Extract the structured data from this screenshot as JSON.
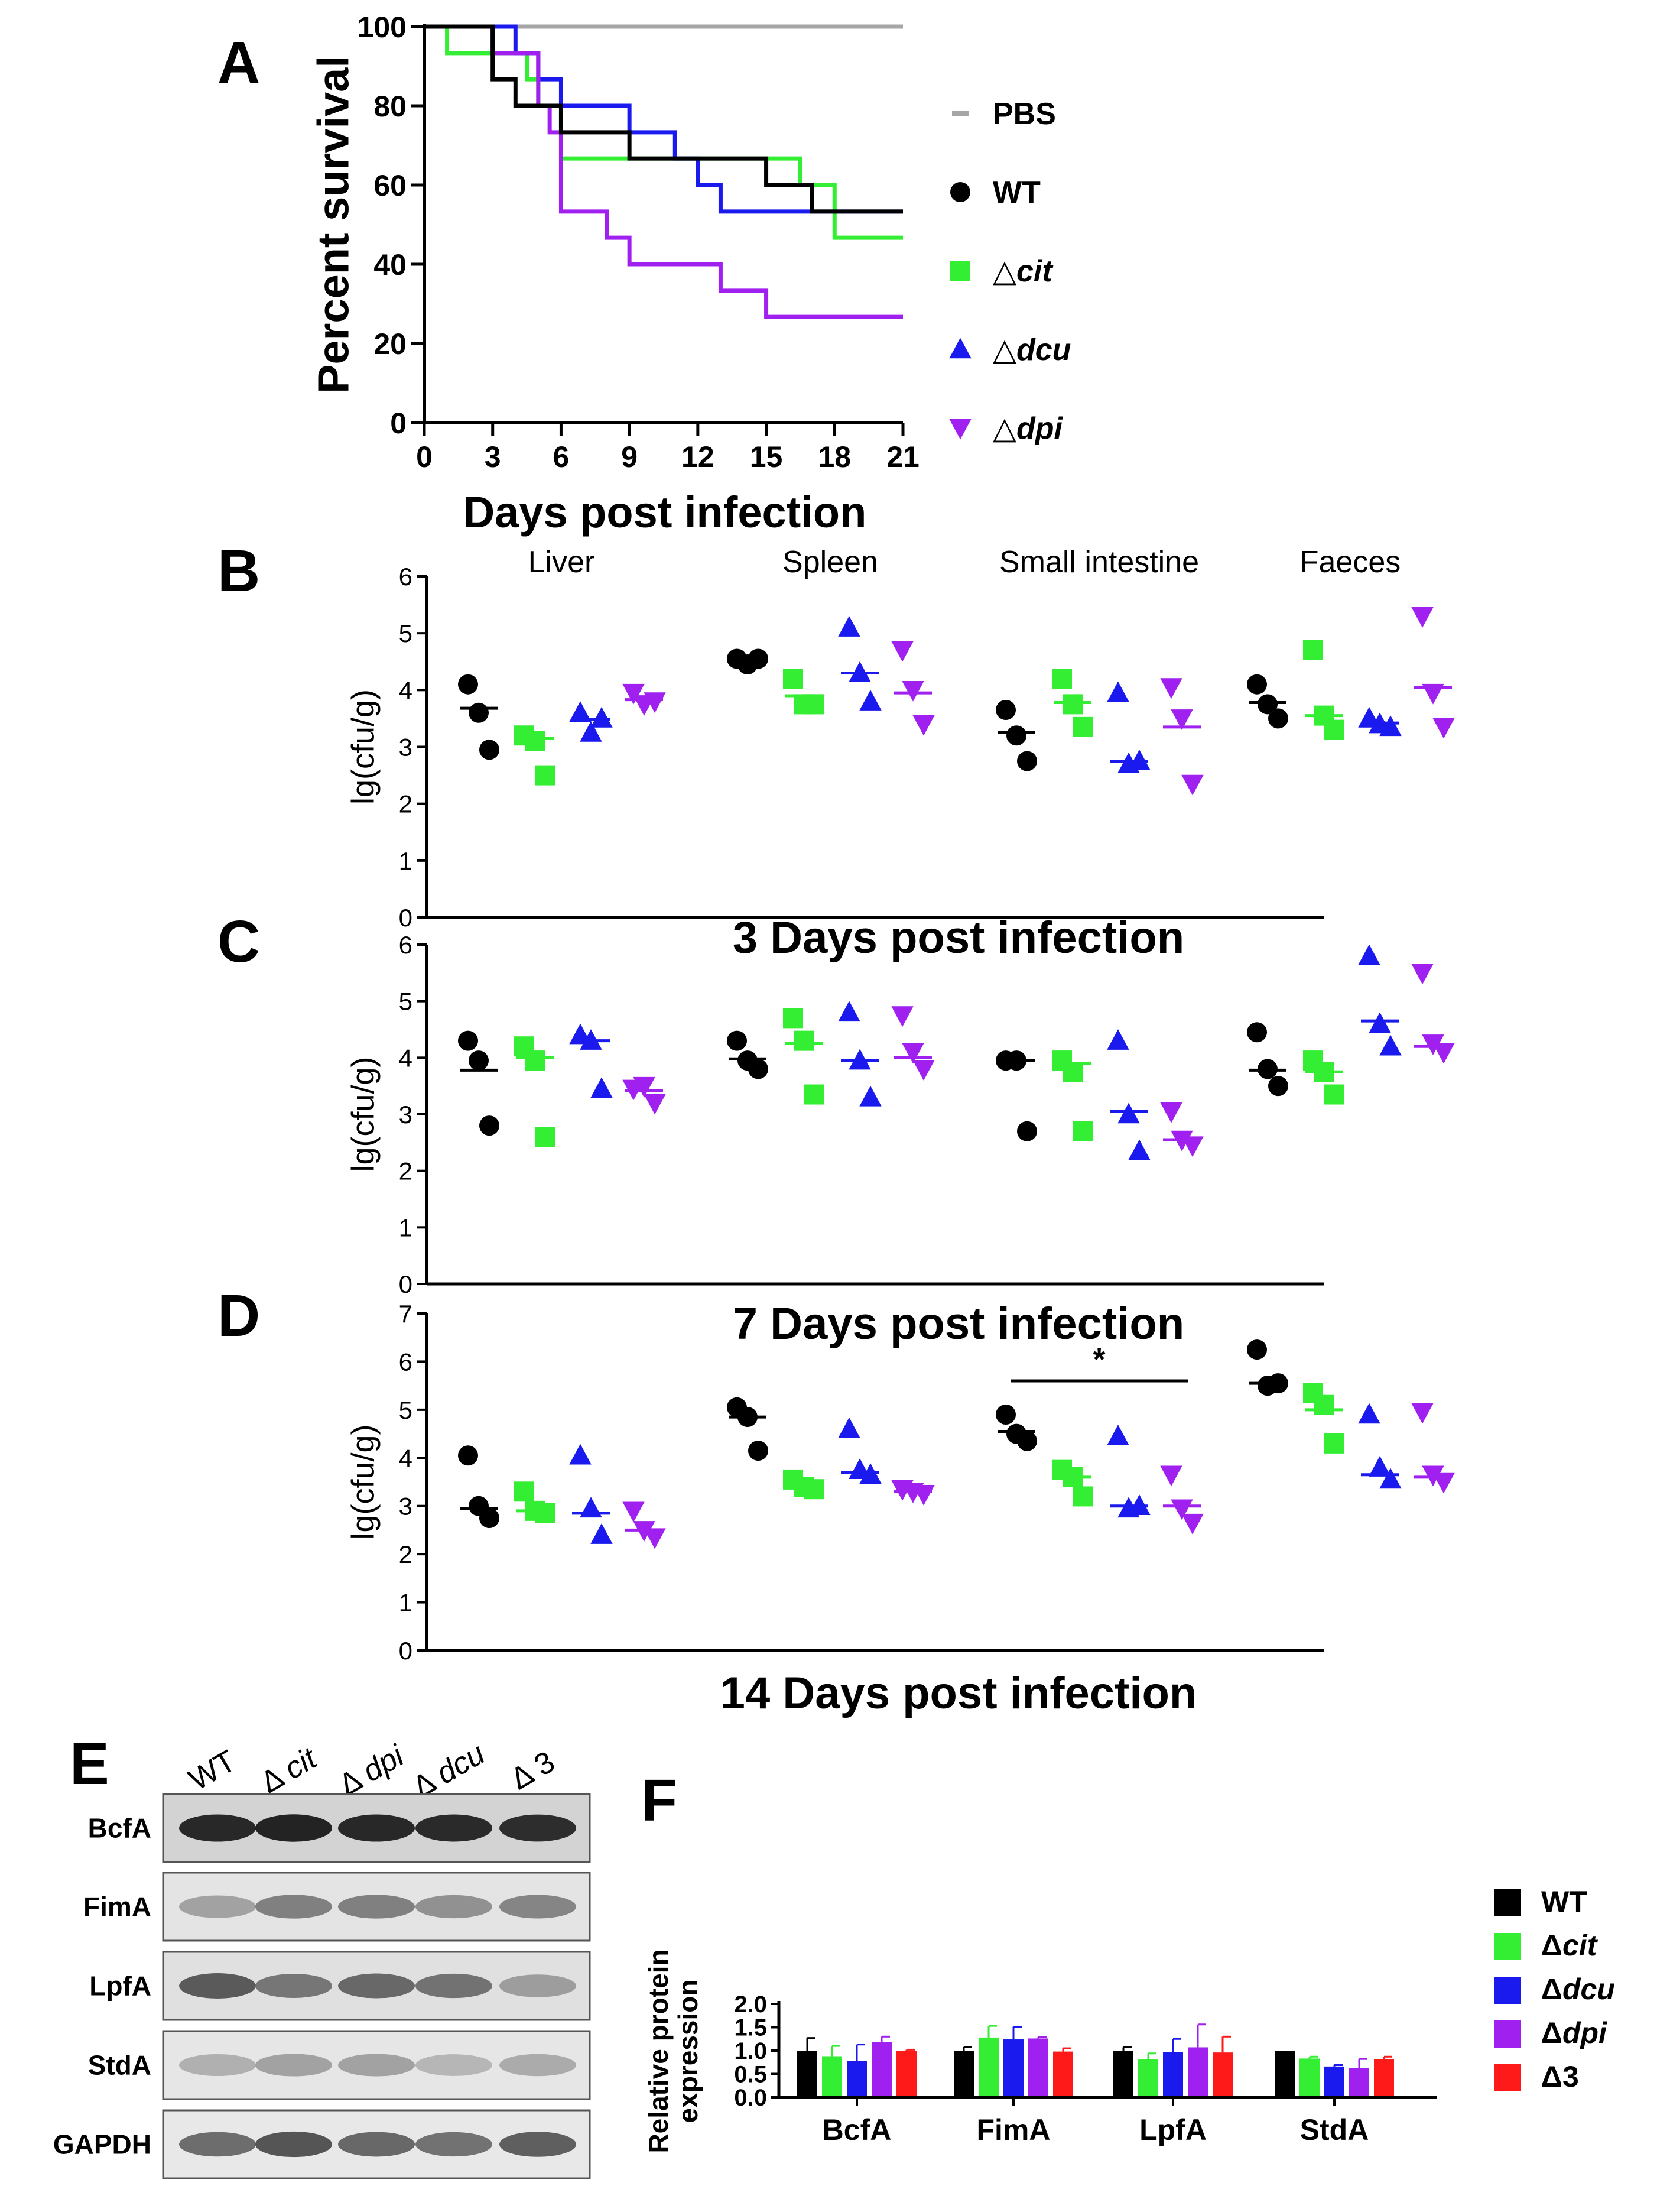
{
  "colors": {
    "PBS": "#a6a6a6",
    "WT": "#000000",
    "cit": "#33ee33",
    "dcu": "#1a1aee",
    "dpi": "#a020f0",
    "d3": "#ff1a1a"
  },
  "chart_data": [
    {
      "panel": "A",
      "type": "line",
      "step": true,
      "xlabel": "Days post infection",
      "ylabel": "Percent survival",
      "xlim": [
        0,
        21
      ],
      "ylim": [
        0,
        100
      ],
      "xticks": [
        "0",
        "3",
        "6",
        "9",
        "12",
        "15",
        "18",
        "21"
      ],
      "yticks": [
        "0",
        "20",
        "40",
        "60",
        "80",
        "100"
      ],
      "legend": [
        {
          "key": "PBS",
          "marker": "dash",
          "text": "PBS",
          "italic": ""
        },
        {
          "key": "WT",
          "marker": "circle",
          "text": "WT",
          "italic": ""
        },
        {
          "key": "cit",
          "marker": "square",
          "text": "△",
          "italic": "cit"
        },
        {
          "key": "dcu",
          "marker": "triangle",
          "text": "△",
          "italic": "dcu"
        },
        {
          "key": "dpi",
          "marker": "invtriangle",
          "text": "△",
          "italic": "dpi"
        }
      ],
      "series": [
        {
          "name": "PBS",
          "key": "PBS",
          "points": [
            [
              0,
              100
            ],
            [
              21,
              100
            ]
          ]
        },
        {
          "name": "Δcit",
          "key": "cit",
          "points": [
            [
              0,
              100
            ],
            [
              1,
              93.3
            ],
            [
              3,
              93.3
            ],
            [
              4.5,
              86.7
            ],
            [
              5,
              80
            ],
            [
              6,
              66.7
            ],
            [
              9,
              66.7
            ],
            [
              15,
              66.7
            ],
            [
              16.5,
              60
            ],
            [
              18,
              46.7
            ],
            [
              21,
              46.7
            ]
          ]
        },
        {
          "name": "Δdcu",
          "key": "dcu",
          "points": [
            [
              0,
              100
            ],
            [
              4,
              93.3
            ],
            [
              5,
              86.7
            ],
            [
              6,
              80
            ],
            [
              9,
              73.3
            ],
            [
              11,
              66.7
            ],
            [
              12,
              60
            ],
            [
              13,
              53.3
            ],
            [
              21,
              53.3
            ]
          ]
        },
        {
          "name": "Δdpi",
          "key": "dpi",
          "points": [
            [
              0,
              100
            ],
            [
              3,
              93.3
            ],
            [
              5,
              80
            ],
            [
              5.5,
              73.3
            ],
            [
              6,
              53.3
            ],
            [
              8,
              46.7
            ],
            [
              9,
              40
            ],
            [
              12,
              40
            ],
            [
              13,
              33.3
            ],
            [
              15,
              26.7
            ],
            [
              21,
              26.7
            ]
          ]
        },
        {
          "name": "WT",
          "key": "WT",
          "points": [
            [
              0,
              100
            ],
            [
              3,
              86.7
            ],
            [
              4,
              80
            ],
            [
              6,
              73.3
            ],
            [
              9,
              66.7
            ],
            [
              15,
              60
            ],
            [
              17,
              53.3
            ],
            [
              21,
              53.3
            ]
          ]
        }
      ]
    },
    {
      "panel": "B",
      "type": "scatter",
      "xlabel": "3 Days post infection",
      "ylabel": "lg(cfu/g)",
      "ylim": [
        0,
        6
      ],
      "yticks": [
        "0",
        "1",
        "2",
        "3",
        "4",
        "5",
        "6"
      ],
      "categories": [
        "Liver",
        "Spleen",
        "Small intestine",
        "Faeces"
      ],
      "groups": [
        {
          "category": "Liver",
          "strain": "WT",
          "values": [
            4.1,
            3.6,
            2.95
          ],
          "mean": 3.68
        },
        {
          "category": "Liver",
          "strain": "Δcit",
          "values": [
            3.2,
            3.1,
            2.5
          ],
          "mean": 3.15
        },
        {
          "category": "Liver",
          "strain": "Δdcu",
          "values": [
            3.6,
            3.25,
            3.5
          ],
          "mean": 3.48
        },
        {
          "category": "Liver",
          "strain": "Δdpi",
          "values": [
            3.95,
            3.75,
            3.8
          ],
          "mean": 3.83
        },
        {
          "category": "Spleen",
          "strain": "WT",
          "values": [
            4.55,
            4.45,
            4.55
          ],
          "mean": 4.52
        },
        {
          "category": "Spleen",
          "strain": "Δcit",
          "values": [
            4.2,
            3.75,
            3.75
          ],
          "mean": 3.9
        },
        {
          "category": "Spleen",
          "strain": "Δdcu",
          "values": [
            5.1,
            4.3,
            3.8
          ],
          "mean": 4.3
        },
        {
          "category": "Spleen",
          "strain": "Δdpi",
          "values": [
            4.7,
            4.0,
            3.4
          ],
          "mean": 3.95
        },
        {
          "category": "Small intestine",
          "strain": "WT",
          "values": [
            3.65,
            3.2,
            2.75
          ],
          "mean": 3.25
        },
        {
          "category": "Small intestine",
          "strain": "Δcit",
          "values": [
            4.2,
            3.75,
            3.35
          ],
          "mean": 3.78
        },
        {
          "category": "Small intestine",
          "strain": "Δdcu",
          "values": [
            3.95,
            2.7,
            2.75
          ],
          "mean": 2.75
        },
        {
          "category": "Small intestine",
          "strain": "Δdpi",
          "values": [
            4.05,
            3.5,
            2.35
          ],
          "mean": 3.35
        },
        {
          "category": "Faeces",
          "strain": "WT",
          "values": [
            4.1,
            3.75,
            3.5
          ],
          "mean": 3.78
        },
        {
          "category": "Faeces",
          "strain": "Δcit",
          "values": [
            4.7,
            3.55,
            3.3
          ],
          "mean": 3.55
        },
        {
          "category": "Faeces",
          "strain": "Δdcu",
          "values": [
            3.5,
            3.4,
            3.35
          ],
          "mean": 3.42
        },
        {
          "category": "Faeces",
          "strain": "Δdpi",
          "values": [
            5.3,
            3.95,
            3.35
          ],
          "mean": 4.05
        }
      ]
    },
    {
      "panel": "C",
      "type": "scatter",
      "xlabel": "7 Days post infection",
      "ylabel": "lg(cfu/g)",
      "ylim": [
        0,
        6
      ],
      "yticks": [
        "0",
        "1",
        "2",
        "3",
        "4",
        "5",
        "6"
      ],
      "categories": [
        "Liver",
        "Spleen",
        "Small intestine",
        "Faeces"
      ],
      "groups": [
        {
          "category": "Liver",
          "strain": "WT",
          "values": [
            4.3,
            3.95,
            2.8
          ],
          "mean": 3.78
        },
        {
          "category": "Liver",
          "strain": "Δcit",
          "values": [
            4.2,
            3.95,
            2.6
          ],
          "mean": 4.0
        },
        {
          "category": "Liver",
          "strain": "Δdcu",
          "values": [
            4.4,
            4.3,
            3.45
          ],
          "mean": 4.3
        },
        {
          "category": "Liver",
          "strain": "Δdpi",
          "values": [
            3.45,
            3.5,
            3.2
          ],
          "mean": 3.42
        },
        {
          "category": "Spleen",
          "strain": "WT",
          "values": [
            4.3,
            3.95,
            3.8
          ],
          "mean": 3.98
        },
        {
          "category": "Spleen",
          "strain": "Δcit",
          "values": [
            4.7,
            4.3,
            3.35
          ],
          "mean": 4.25
        },
        {
          "category": "Spleen",
          "strain": "Δdcu",
          "values": [
            4.8,
            3.95,
            3.3
          ],
          "mean": 3.95
        },
        {
          "category": "Spleen",
          "strain": "Δdpi",
          "values": [
            4.75,
            4.1,
            3.8
          ],
          "mean": 4.0
        },
        {
          "category": "Small intestine",
          "strain": "WT",
          "values": [
            3.95,
            3.95,
            2.7
          ],
          "mean": 3.95
        },
        {
          "category": "Small intestine",
          "strain": "Δcit",
          "values": [
            3.95,
            3.75,
            2.7
          ],
          "mean": 3.9
        },
        {
          "category": "Small intestine",
          "strain": "Δdcu",
          "values": [
            4.3,
            3.0,
            2.35
          ],
          "mean": 3.05
        },
        {
          "category": "Small intestine",
          "strain": "Δdpi",
          "values": [
            3.05,
            2.55,
            2.45
          ],
          "mean": 2.55
        },
        {
          "category": "Faeces",
          "strain": "WT",
          "values": [
            4.45,
            3.8,
            3.5
          ],
          "mean": 3.78
        },
        {
          "category": "Faeces",
          "strain": "Δcit",
          "values": [
            3.95,
            3.75,
            3.35
          ],
          "mean": 3.75
        },
        {
          "category": "Faeces",
          "strain": "Δdcu",
          "values": [
            5.8,
            4.6,
            4.2
          ],
          "mean": 4.65
        },
        {
          "category": "Faeces",
          "strain": "Δdpi",
          "values": [
            5.5,
            4.25,
            4.1
          ],
          "mean": 4.2
        }
      ]
    },
    {
      "panel": "D",
      "type": "scatter",
      "xlabel": "14 Days post infection",
      "ylabel": "lg(cfu/g)",
      "ylim": [
        0,
        7
      ],
      "yticks": [
        "0",
        "1",
        "2",
        "3",
        "4",
        "5",
        "6",
        "7"
      ],
      "categories": [
        "Liver",
        "Spleen",
        "Small intestine",
        "Faeces"
      ],
      "significance": {
        "label": "*",
        "from": "Small intestine WT",
        "to": "Small intestine Δdpi",
        "level": 5.6
      },
      "groups": [
        {
          "category": "Liver",
          "strain": "WT",
          "values": [
            4.05,
            3.0,
            2.75
          ],
          "mean": 2.95
        },
        {
          "category": "Liver",
          "strain": "Δcit",
          "values": [
            3.3,
            2.9,
            2.85
          ],
          "mean": 2.9
        },
        {
          "category": "Liver",
          "strain": "Δdcu",
          "values": [
            4.05,
            2.95,
            2.4
          ],
          "mean": 2.85
        },
        {
          "category": "Liver",
          "strain": "Δdpi",
          "values": [
            2.9,
            2.5,
            2.35
          ],
          "mean": 2.5
        },
        {
          "category": "Spleen",
          "strain": "WT",
          "values": [
            5.05,
            4.85,
            4.15
          ],
          "mean": 4.85
        },
        {
          "category": "Spleen",
          "strain": "Δcit",
          "values": [
            3.55,
            3.4,
            3.35
          ],
          "mean": 3.45
        },
        {
          "category": "Spleen",
          "strain": "Δdcu",
          "values": [
            4.6,
            3.75,
            3.65
          ],
          "mean": 3.7
        },
        {
          "category": "Spleen",
          "strain": "Δdpi",
          "values": [
            3.35,
            3.3,
            3.25
          ],
          "mean": 3.3
        },
        {
          "category": "Small intestine",
          "strain": "WT",
          "values": [
            4.9,
            4.5,
            4.35
          ],
          "mean": 4.55
        },
        {
          "category": "Small intestine",
          "strain": "Δcit",
          "values": [
            3.75,
            3.6,
            3.2
          ],
          "mean": 3.6
        },
        {
          "category": "Small intestine",
          "strain": "Δdcu",
          "values": [
            4.45,
            2.95,
            3.0
          ],
          "mean": 3.0
        },
        {
          "category": "Small intestine",
          "strain": "Δdpi",
          "values": [
            3.65,
            2.95,
            2.65
          ],
          "mean": 3.0
        },
        {
          "category": "Faeces",
          "strain": "WT",
          "values": [
            6.25,
            5.5,
            5.55
          ],
          "mean": 5.55
        },
        {
          "category": "Faeces",
          "strain": "Δcit",
          "values": [
            5.35,
            5.1,
            4.3
          ],
          "mean": 5.0
        },
        {
          "category": "Faeces",
          "strain": "Δdcu",
          "values": [
            4.9,
            3.8,
            3.55
          ],
          "mean": 3.65
        },
        {
          "category": "Faeces",
          "strain": "Δdpi",
          "values": [
            4.95,
            3.65,
            3.5
          ],
          "mean": 3.6
        }
      ]
    },
    {
      "panel": "F",
      "type": "bar",
      "ylabel": "Relative protein expression",
      "ylabel_lines": [
        "Relative protein",
        "expression"
      ],
      "ylim": [
        0,
        2
      ],
      "yticks": [
        "0.0",
        "0.5",
        "1.0",
        "1.5",
        "2.0"
      ],
      "categories": [
        "BcfA",
        "FimA",
        "LpfA",
        "StdA"
      ],
      "legend": [
        {
          "key": "WT",
          "text": "WT",
          "italic": ""
        },
        {
          "key": "cit",
          "text": "Δ",
          "italic": "cit"
        },
        {
          "key": "dcu",
          "text": "Δ",
          "italic": "dcu"
        },
        {
          "key": "dpi",
          "text": "Δ",
          "italic": "dpi"
        },
        {
          "key": "d3",
          "text": "Δ3",
          "italic": ""
        }
      ],
      "series": [
        {
          "name": "WT",
          "key": "WT",
          "values": [
            1.0,
            1.0,
            1.0,
            1.0
          ],
          "errors": [
            0.27,
            0.08,
            0.07,
            0.0
          ]
        },
        {
          "name": "Δcit",
          "key": "cit",
          "values": [
            0.88,
            1.28,
            0.82,
            0.83
          ],
          "errors": [
            0.22,
            0.25,
            0.12,
            0.04
          ]
        },
        {
          "name": "Δdcu",
          "key": "dcu",
          "values": [
            0.78,
            1.24,
            0.97,
            0.66
          ],
          "errors": [
            0.35,
            0.27,
            0.28,
            0.03
          ]
        },
        {
          "name": "Δdpi",
          "key": "dpi",
          "values": [
            1.18,
            1.26,
            1.07,
            0.63
          ],
          "errors": [
            0.12,
            0.03,
            0.49,
            0.19
          ]
        },
        {
          "name": "Δ3",
          "key": "d3",
          "values": [
            1.0,
            0.98,
            0.96,
            0.81
          ],
          "errors": [
            0.02,
            0.07,
            0.34,
            0.06
          ]
        }
      ]
    }
  ],
  "panel_letters": [
    "A",
    "B",
    "C",
    "D",
    "E",
    "F"
  ],
  "blot": {
    "lanes": [
      {
        "text": "WT",
        "italic": ""
      },
      {
        "text": "Δ ",
        "italic": "cit"
      },
      {
        "text": "Δ ",
        "italic": "dpi"
      },
      {
        "text": "Δ ",
        "italic": "dcu"
      },
      {
        "text": "Δ 3",
        "italic": ""
      }
    ],
    "rows": [
      {
        "label": "BcfA",
        "darkness": [
          0.88,
          0.9,
          0.88,
          0.87,
          0.86
        ],
        "background": "#d3d3d3"
      },
      {
        "label": "FimA",
        "darkness": [
          0.38,
          0.52,
          0.52,
          0.45,
          0.5
        ],
        "background": "#e4e4e4"
      },
      {
        "label": "LpfA",
        "darkness": [
          0.68,
          0.56,
          0.62,
          0.58,
          0.4
        ],
        "background": "#e0e0e0"
      },
      {
        "label": "StdA",
        "darkness": [
          0.32,
          0.38,
          0.38,
          0.3,
          0.34
        ],
        "background": "#e6e6e6"
      },
      {
        "label": "GAPDH",
        "darkness": [
          0.6,
          0.7,
          0.62,
          0.58,
          0.66
        ],
        "background": "#e8e8e8"
      }
    ]
  }
}
